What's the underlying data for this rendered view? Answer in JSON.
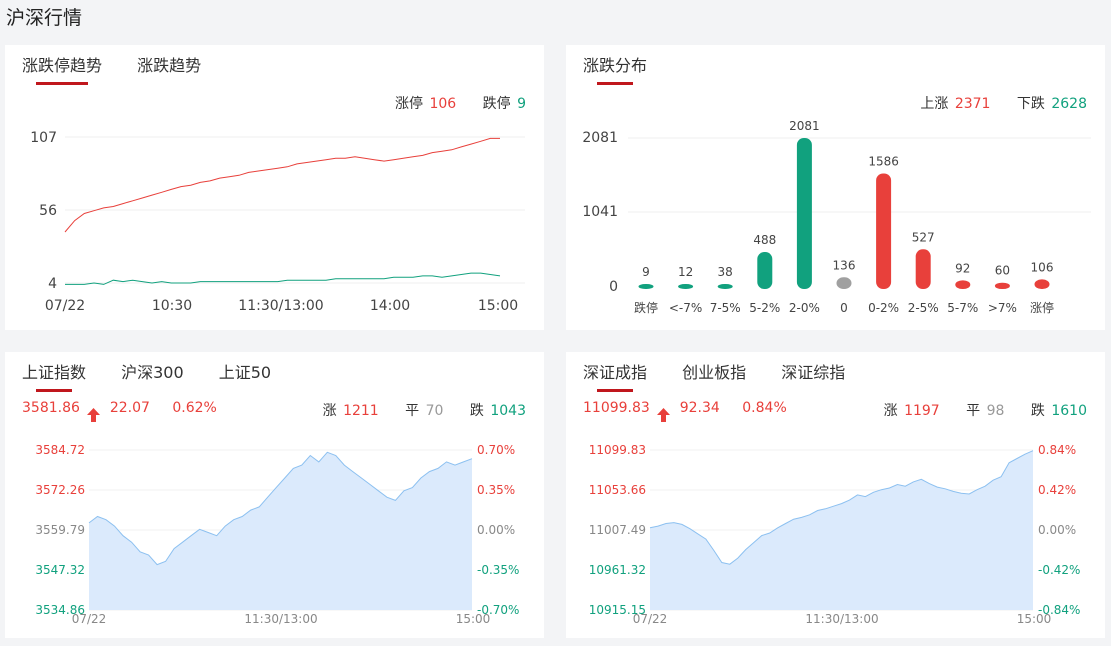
{
  "page": {
    "title": "沪深行情"
  },
  "colors": {
    "up": "#e8403b",
    "down": "#11a17e",
    "flat": "#a0a0a0",
    "accent": "#c0171d",
    "area_fill": "#dbeafc",
    "area_line": "#8cc0f0"
  },
  "trend": {
    "tabs": [
      "涨跌停趋势",
      "涨跌趋势"
    ],
    "limit_up_label": "涨停",
    "limit_up_value": "106",
    "limit_down_label": "跌停",
    "limit_down_value": "9",
    "y_ticks": [
      "107",
      "56",
      "4"
    ],
    "x_ticks": [
      "07/22",
      "10:30",
      "11:30/13:00",
      "14:00",
      "15:00"
    ]
  },
  "distribution": {
    "tabs": [
      "涨跌分布"
    ],
    "up_label": "上涨",
    "up_value": "2371",
    "down_label": "下跌",
    "down_value": "2628",
    "y_ticks": [
      "2081",
      "1041",
      "0"
    ]
  },
  "sh_index": {
    "tabs": [
      "上证指数",
      "沪深300",
      "上证50"
    ],
    "price": "3581.86",
    "change": "22.07",
    "change_pct": "0.62%",
    "up_label": "涨",
    "up_count": "1211",
    "flat_label": "平",
    "flat_count": "70",
    "down_label": "跌",
    "down_count": "1043",
    "y_left": [
      "3584.72",
      "3572.26",
      "3559.79",
      "3547.32",
      "3534.86"
    ],
    "y_right": [
      "0.70%",
      "0.35%",
      "0.00%",
      "-0.35%",
      "-0.70%"
    ],
    "x_ticks": [
      "07/22",
      "11:30/13:00",
      "15:00"
    ]
  },
  "sz_index": {
    "tabs": [
      "深证成指",
      "创业板指",
      "深证综指"
    ],
    "price": "11099.83",
    "change": "92.34",
    "change_pct": "0.84%",
    "up_label": "涨",
    "up_count": "1197",
    "flat_label": "平",
    "flat_count": "98",
    "down_label": "跌",
    "down_count": "1610",
    "y_left": [
      "11099.83",
      "11053.66",
      "11007.49",
      "10961.32",
      "10915.15"
    ],
    "y_right": [
      "0.84%",
      "0.42%",
      "0.00%",
      "-0.42%",
      "-0.84%"
    ],
    "x_ticks": [
      "07/22",
      "11:30/13:00",
      "15:00"
    ]
  },
  "chart_data": [
    {
      "type": "line",
      "series": [
        {
          "name": "涨停",
          "values": [
            40,
            48,
            53,
            55,
            57,
            58,
            60,
            62,
            64,
            66,
            68,
            70,
            72,
            73,
            75,
            76,
            78,
            79,
            80,
            82,
            83,
            84,
            85,
            86,
            88,
            89,
            90,
            91,
            92,
            92,
            93,
            92,
            91,
            90,
            91,
            92,
            93,
            94,
            96,
            97,
            98,
            100,
            102,
            104,
            106,
            106
          ]
        },
        {
          "name": "跌停",
          "values": [
            3,
            3,
            3,
            4,
            3,
            6,
            5,
            6,
            5,
            4,
            5,
            4,
            4,
            4,
            5,
            5,
            5,
            5,
            5,
            5,
            5,
            5,
            5,
            6,
            6,
            6,
            6,
            6,
            7,
            7,
            7,
            7,
            7,
            7,
            8,
            8,
            8,
            9,
            9,
            8,
            9,
            10,
            11,
            11,
            10,
            9
          ]
        }
      ],
      "ylim": [
        4,
        107
      ]
    },
    {
      "type": "bar",
      "categories": [
        "跌停",
        "<-7%",
        "7-5%",
        "5-2%",
        "2-0%",
        "0",
        "0-2%",
        "2-5%",
        "5-7%",
        ">7%",
        "涨停"
      ],
      "values": [
        9,
        12,
        38,
        488,
        2081,
        136,
        1586,
        527,
        92,
        60,
        106
      ],
      "colors": [
        "green",
        "green",
        "green",
        "green",
        "green",
        "gray",
        "red",
        "red",
        "red",
        "red",
        "red"
      ],
      "ylim": [
        0,
        2081
      ]
    },
    {
      "type": "area",
      "series": [
        {
          "name": "上证指数",
          "values": [
            3562,
            3564,
            3563,
            3561,
            3558,
            3556,
            3553,
            3552,
            3549,
            3550,
            3554,
            3556,
            3558,
            3560,
            3559,
            3558,
            3561,
            3563,
            3564,
            3566,
            3567,
            3570,
            3573,
            3576,
            3579,
            3580,
            3583,
            3581,
            3584,
            3583,
            3580,
            3578,
            3576,
            3574,
            3572,
            3570,
            3569,
            3572,
            3573,
            3576,
            3578,
            3579,
            3581,
            3580,
            3581,
            3582
          ]
        }
      ],
      "ylim": [
        3534.86,
        3584.72
      ]
    },
    {
      "type": "area",
      "series": [
        {
          "name": "深证成指",
          "values": [
            11010,
            11012,
            11015,
            11016,
            11014,
            11009,
            11003,
            10997,
            10984,
            10970,
            10968,
            10975,
            10985,
            10993,
            11001,
            11004,
            11010,
            11015,
            11020,
            11022,
            11025,
            11030,
            11032,
            11035,
            11038,
            11042,
            11048,
            11046,
            11051,
            11054,
            11056,
            11060,
            11058,
            11063,
            11066,
            11061,
            11057,
            11055,
            11052,
            11050,
            11049,
            11054,
            11058,
            11065,
            11069,
            11085,
            11090,
            11095,
            11099
          ]
        }
      ],
      "ylim": [
        10915.15,
        11099.83
      ]
    }
  ]
}
